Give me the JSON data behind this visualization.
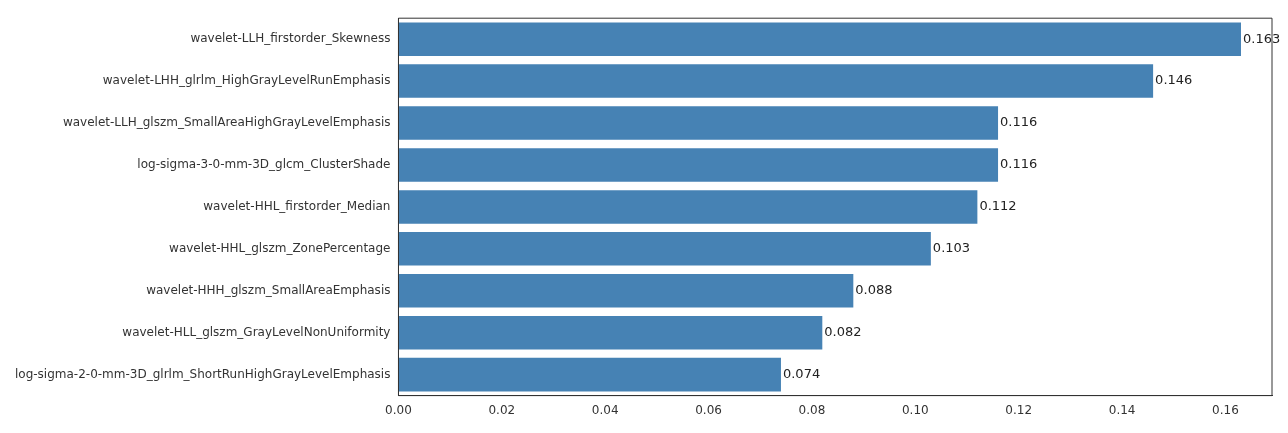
{
  "chart_data": {
    "type": "bar",
    "orientation": "horizontal",
    "categories": [
      "wavelet-LLH_firstorder_Skewness",
      "wavelet-LHH_glrlm_HighGrayLevelRunEmphasis",
      "wavelet-LLH_glszm_SmallAreaHighGrayLevelEmphasis",
      "log-sigma-3-0-mm-3D_glcm_ClusterShade",
      "wavelet-HHL_firstorder_Median",
      "wavelet-HHL_glszm_ZonePercentage",
      "wavelet-HHH_glszm_SmallAreaEmphasis",
      "wavelet-HLL_glszm_GrayLevelNonUniformity",
      "log-sigma-2-0-mm-3D_glrlm_ShortRunHighGrayLevelEmphasis"
    ],
    "values": [
      0.163,
      0.146,
      0.116,
      0.116,
      0.112,
      0.103,
      0.088,
      0.082,
      0.074
    ],
    "color": "#4682b4",
    "data_labels": true,
    "grid": false,
    "legend": false,
    "xlim": [
      0,
      0.169
    ],
    "xticks": [
      {
        "value": 0,
        "label": "0.00"
      },
      {
        "value": 0.02,
        "label": "0.02"
      },
      {
        "value": 0.04,
        "label": "0.04"
      },
      {
        "value": 0.06,
        "label": "0.06"
      },
      {
        "value": 0.08,
        "label": "0.08"
      },
      {
        "value": 0.1,
        "label": "0.10"
      },
      {
        "value": 0.12,
        "label": "0.12"
      },
      {
        "value": 0.14,
        "label": "0.14"
      },
      {
        "value": 0.16,
        "label": "0.16"
      }
    ]
  }
}
